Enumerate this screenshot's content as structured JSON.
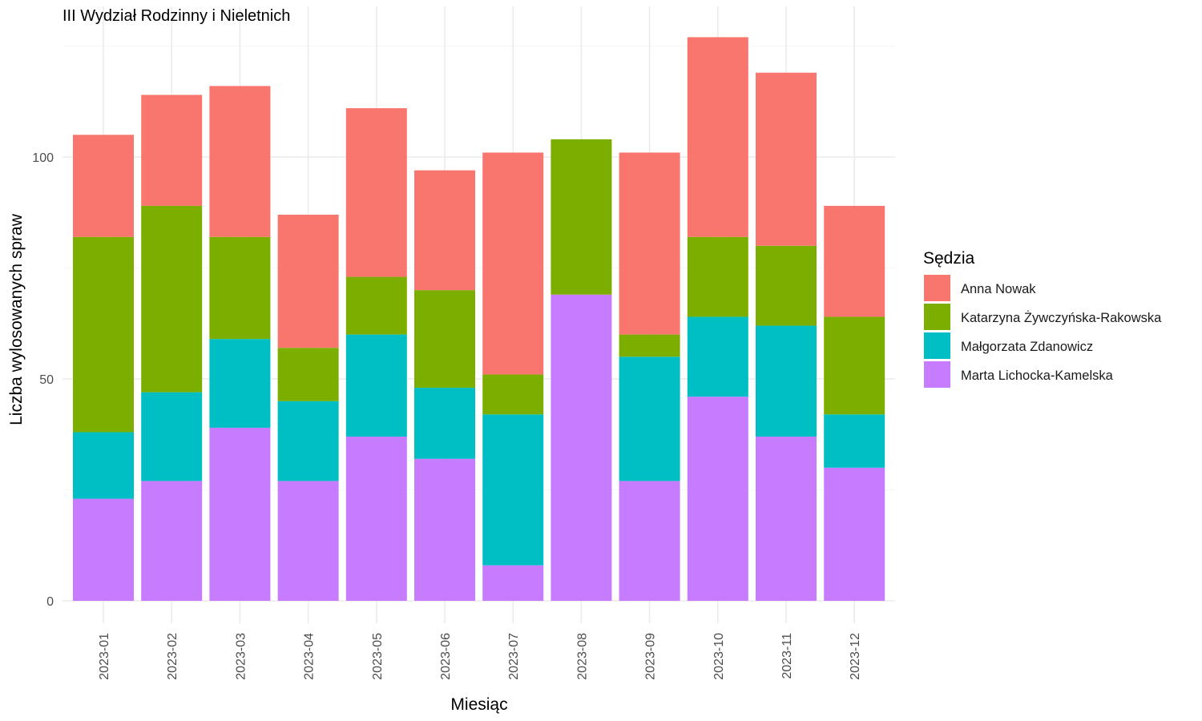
{
  "chart_data": {
    "type": "bar",
    "stacked": true,
    "title": "III Wydział Rodzinny i Nieletnich",
    "xlabel": "Miesiąc",
    "ylabel": "Liczba wylosowanych spraw",
    "ylim": [
      0,
      130
    ],
    "yticks": [
      0,
      50,
      100
    ],
    "grid": true,
    "legend_title": "Sędzia",
    "legend_position": "right",
    "categories": [
      "2023-01",
      "2023-02",
      "2023-03",
      "2023-04",
      "2023-05",
      "2023-06",
      "2023-07",
      "2023-08",
      "2023-09",
      "2023-10",
      "2023-11",
      "2023-12"
    ],
    "series": [
      {
        "name": "Marta Lichocka-Kamelska",
        "color": "#C77CFF",
        "values": [
          23,
          27,
          39,
          27,
          37,
          32,
          8,
          69,
          27,
          46,
          37,
          30
        ]
      },
      {
        "name": "Małgorzata Zdanowicz",
        "color": "#00BFC4",
        "values": [
          15,
          20,
          20,
          18,
          23,
          16,
          34,
          0,
          28,
          18,
          25,
          12
        ]
      },
      {
        "name": "Katarzyna Żywczyńska-Rakowska",
        "color": "#7CAE00",
        "values": [
          44,
          42,
          23,
          12,
          13,
          22,
          9,
          35,
          5,
          18,
          18,
          22
        ]
      },
      {
        "name": "Anna Nowak",
        "color": "#F8766D",
        "values": [
          23,
          25,
          34,
          30,
          38,
          27,
          50,
          0,
          41,
          45,
          39,
          25
        ]
      }
    ],
    "legend_order": [
      "Anna Nowak",
      "Katarzyna Żywczyńska-Rakowska",
      "Małgorzata Zdanowicz",
      "Marta Lichocka-Kamelska"
    ]
  }
}
